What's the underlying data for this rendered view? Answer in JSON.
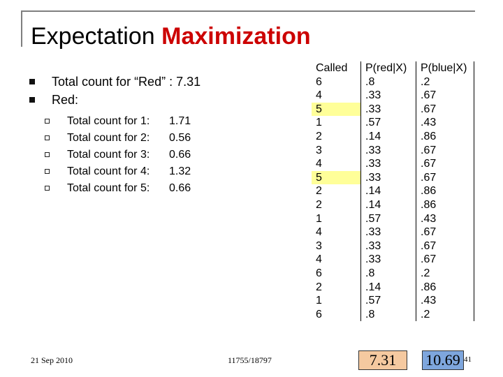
{
  "slide": {
    "title_plain": "Expectation ",
    "title_accent": "Maximization",
    "bullets": [
      "Total count for “Red” : 7.31",
      "Red:"
    ],
    "sub_items": [
      {
        "label": "Total count for 1:",
        "value": "1.71"
      },
      {
        "label": "Total count for 2:",
        "value": "0.56"
      },
      {
        "label": "Total count for 3:",
        "value": "0.66"
      },
      {
        "label": "Total count for 4:",
        "value": "1.32"
      },
      {
        "label": "Total count for 5:",
        "value": "0.66"
      }
    ],
    "table": {
      "headers": [
        "Called",
        "P(red|X)",
        "P(blue|X)"
      ],
      "highlight_color": "#ffff99",
      "rows": [
        {
          "called": "6",
          "p_red": ".8",
          "p_blue": ".2",
          "highlight": false
        },
        {
          "called": "4",
          "p_red": ".33",
          "p_blue": ".67",
          "highlight": false
        },
        {
          "called": "5",
          "p_red": ".33",
          "p_blue": ".67",
          "highlight": true
        },
        {
          "called": "1",
          "p_red": ".57",
          "p_blue": ".43",
          "highlight": false
        },
        {
          "called": "2",
          "p_red": ".14",
          "p_blue": ".86",
          "highlight": false
        },
        {
          "called": "3",
          "p_red": ".33",
          "p_blue": ".67",
          "highlight": false
        },
        {
          "called": "4",
          "p_red": ".33",
          "p_blue": ".67",
          "highlight": false
        },
        {
          "called": "5",
          "p_red": ".33",
          "p_blue": ".67",
          "highlight": true
        },
        {
          "called": "2",
          "p_red": ".14",
          "p_blue": ".86",
          "highlight": false
        },
        {
          "called": "2",
          "p_red": ".14",
          "p_blue": ".86",
          "highlight": false
        },
        {
          "called": "1",
          "p_red": ".57",
          "p_blue": ".43",
          "highlight": false
        },
        {
          "called": "4",
          "p_red": ".33",
          "p_blue": ".67",
          "highlight": false
        },
        {
          "called": "3",
          "p_red": ".33",
          "p_blue": ".67",
          "highlight": false
        },
        {
          "called": "4",
          "p_red": ".33",
          "p_blue": ".67",
          "highlight": false
        },
        {
          "called": "6",
          "p_red": ".8",
          "p_blue": ".2",
          "highlight": false
        },
        {
          "called": "2",
          "p_red": ".14",
          "p_blue": ".86",
          "highlight": false
        },
        {
          "called": "1",
          "p_red": ".57",
          "p_blue": ".43",
          "highlight": false
        },
        {
          "called": "6",
          "p_red": ".8",
          "p_blue": ".2",
          "highlight": false
        }
      ]
    },
    "totals": {
      "red": "7.31",
      "blue": "10.69"
    },
    "footer": {
      "date": "21 Sep 2010",
      "course": "11755/18797",
      "page": "41"
    }
  }
}
